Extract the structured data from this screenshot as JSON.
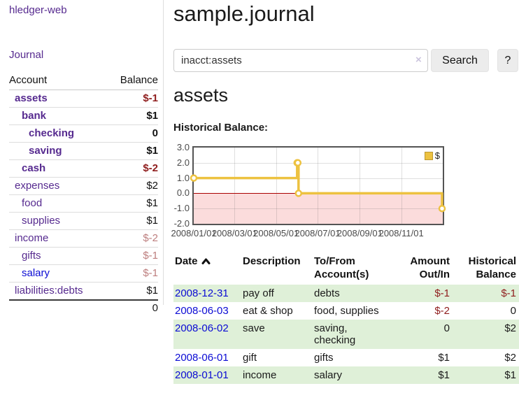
{
  "app": {
    "brand": "hledger-web"
  },
  "palette": {
    "purple": "#562a8f",
    "link-blue": "#0b0bd4",
    "neg": "#8f1d1d",
    "negm": "#bd7e7e",
    "stripe": "#dff0d8",
    "gold": "#edc240",
    "pink": "#fbdcdc",
    "zero-red": "#aa0000"
  },
  "sidebar": {
    "journal_link": "Journal",
    "table_headers": {
      "account": "Account",
      "balance": "Balance"
    },
    "accounts": [
      {
        "name": "assets",
        "balance": "$-1",
        "level": 1,
        "matched": true
      },
      {
        "name": "bank",
        "balance": "$1",
        "level": 2,
        "matched": true
      },
      {
        "name": "checking",
        "balance": "0",
        "level": 3,
        "matched": true
      },
      {
        "name": "saving",
        "balance": "$1",
        "level": 3,
        "matched": true
      },
      {
        "name": "cash",
        "balance": "$-2",
        "level": 2,
        "matched": true
      },
      {
        "name": "expenses",
        "balance": "$2",
        "level": 1,
        "matched": false
      },
      {
        "name": "food",
        "balance": "$1",
        "level": 2,
        "matched": false
      },
      {
        "name": "supplies",
        "balance": "$1",
        "level": 2,
        "matched": false
      },
      {
        "name": "income",
        "balance": "$-2",
        "level": 1,
        "matched": false
      },
      {
        "name": "gifts",
        "balance": "$-1",
        "level": 2,
        "matched": false
      },
      {
        "name": "salary",
        "balance": "$-1",
        "level": 2,
        "matched": false,
        "unvisited": true
      },
      {
        "name": "liabilities:debts",
        "balance": "$1",
        "level": 1,
        "matched": false
      }
    ],
    "total": "0"
  },
  "header": {
    "title": "sample.journal"
  },
  "search": {
    "value": "inacct:assets",
    "clear_label": "×",
    "button": "Search",
    "help_button": "?"
  },
  "icons": {
    "sort": "chevron-up",
    "clear": "x-clear"
  },
  "account_page": {
    "heading": "assets",
    "chart_label": "Historical Balance:"
  },
  "chart_data": {
    "type": "line",
    "title": "Historical Balance:",
    "series": [
      {
        "name": "$",
        "color": "#edc240",
        "step": true,
        "points": [
          [
            "2008-01-01",
            1
          ],
          [
            "2008-06-01",
            2
          ],
          [
            "2008-06-02",
            2
          ],
          [
            "2008-06-03",
            0
          ],
          [
            "2008-12-31",
            -1
          ]
        ]
      }
    ],
    "xlim": [
      "2008-01-01",
      "2009-01-01"
    ],
    "ylim": [
      -2,
      3
    ],
    "yticks": [
      3,
      2,
      1,
      0,
      -1,
      -2
    ],
    "ytick_labels": [
      "3.0",
      "2.0",
      "1.0",
      "0.0",
      "-1.0",
      "-2.0"
    ],
    "xticks": [
      {
        "date": "2008-01-01",
        "label": "2008/01/01"
      },
      {
        "date": "2008-03-01",
        "label": "2008/03/01"
      },
      {
        "date": "2008-05-01",
        "label": "2008/05/01"
      },
      {
        "date": "2008-07-01",
        "label": "2008/07/01"
      },
      {
        "date": "2008-09-01",
        "label": "2008/09/01"
      },
      {
        "date": "2008-11-01",
        "label": "2008/11/01"
      }
    ],
    "legend_position": "top-right",
    "grid": true,
    "negative_region": true
  },
  "register": {
    "columns": [
      "Date",
      "Description",
      "To/From Account(s)",
      "Amount Out/In",
      "Historical Balance"
    ],
    "sort": {
      "column": "Date",
      "direction": "ascending"
    },
    "rows": [
      {
        "date": "2008-12-31",
        "description": "pay off",
        "accounts": "debts",
        "amount": "$-1",
        "balance": "$-1"
      },
      {
        "date": "2008-06-03",
        "description": "eat & shop",
        "accounts": "food, supplies",
        "amount": "$-2",
        "balance": "0"
      },
      {
        "date": "2008-06-02",
        "description": "save",
        "accounts": "saving, checking",
        "amount": "0",
        "balance": "$2"
      },
      {
        "date": "2008-06-01",
        "description": "gift",
        "accounts": "gifts",
        "amount": "$1",
        "balance": "$2"
      },
      {
        "date": "2008-01-01",
        "description": "income",
        "accounts": "salary",
        "amount": "$1",
        "balance": "$1"
      }
    ]
  }
}
